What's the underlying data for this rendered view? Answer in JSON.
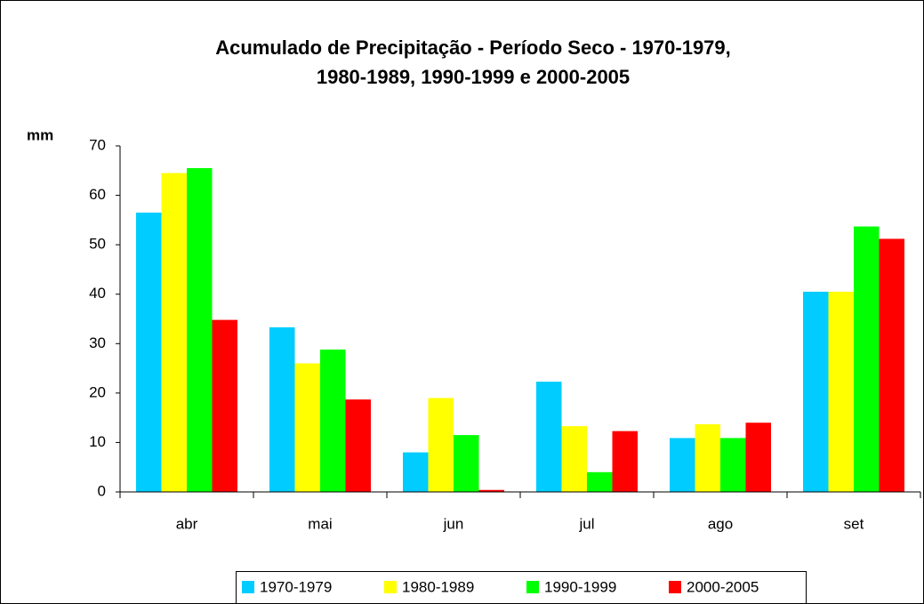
{
  "chart_data": {
    "type": "bar",
    "title": [
      "Acumulado de Precipitação - Período Seco - 1970-1979,",
      "1980-1989, 1990-1999 e 2000-2005"
    ],
    "y_label": "mm",
    "categories": [
      "abr",
      "mai",
      "jun",
      "jul",
      "ago",
      "set"
    ],
    "series": [
      {
        "name": "1970-1979",
        "color": "#00ccff",
        "values": [
          56.5,
          33.3,
          8,
          22.3,
          10.9,
          40.5
        ]
      },
      {
        "name": "1980-1989",
        "color": "#ffff00",
        "values": [
          64.5,
          26,
          19,
          13.3,
          13.7,
          40.5
        ]
      },
      {
        "name": "1990-1999",
        "color": "#00ff00",
        "values": [
          65.5,
          28.8,
          11.5,
          4,
          10.9,
          53.7
        ]
      },
      {
        "name": "2000-2005",
        "color": "#ff0000",
        "values": [
          34.8,
          18.7,
          0.4,
          12.3,
          14,
          51.2
        ]
      }
    ],
    "ylim": [
      0,
      70
    ],
    "yticks": [
      0,
      10,
      20,
      30,
      40,
      50,
      60,
      70
    ],
    "legend": "bottom"
  }
}
